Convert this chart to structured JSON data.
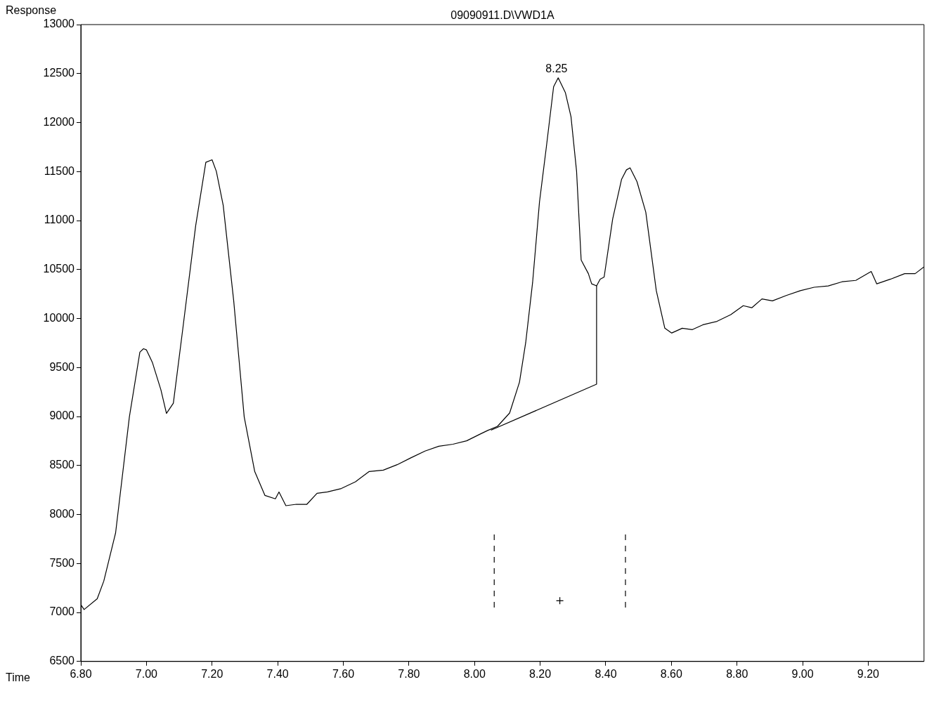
{
  "chart_data": {
    "type": "line",
    "title": "09090911.D\\VWD1A",
    "xlabel": "Time",
    "ylabel": "Response",
    "xlim": [
      6.8,
      9.37
    ],
    "ylim": [
      6500,
      13000
    ],
    "xticks": [
      {
        "value": 6.8,
        "label": "6.80"
      },
      {
        "value": 7.0,
        "label": "7.00"
      },
      {
        "value": 7.2,
        "label": "7.20"
      },
      {
        "value": 7.4,
        "label": "7.40"
      },
      {
        "value": 7.6,
        "label": "7.60"
      },
      {
        "value": 7.8,
        "label": "7.80"
      },
      {
        "value": 8.0,
        "label": "8.00"
      },
      {
        "value": 8.2,
        "label": "8.20"
      },
      {
        "value": 8.4,
        "label": "8.40"
      },
      {
        "value": 8.6,
        "label": "8.60"
      },
      {
        "value": 8.8,
        "label": "8.80"
      },
      {
        "value": 9.0,
        "label": "9.00"
      },
      {
        "value": 9.2,
        "label": "9.20"
      }
    ],
    "yticks": [
      6500,
      7000,
      7500,
      8000,
      8500,
      9000,
      9500,
      10000,
      10500,
      11000,
      11500,
      12000,
      12500,
      13000
    ],
    "grid": false,
    "legend": false,
    "marker": "none",
    "line_style": "solid",
    "annotations": [
      {
        "text": "8.25",
        "x": 8.25,
        "y": 12457
      }
    ],
    "series": [
      {
        "type": "line",
        "color": "#000000",
        "x": [
          6.8,
          6.81,
          6.85,
          6.87,
          6.906,
          6.948,
          6.98,
          6.991,
          7.0,
          7.018,
          7.044,
          7.061,
          7.082,
          7.111,
          7.15,
          7.181,
          7.2,
          7.213,
          7.234,
          7.266,
          7.298,
          7.33,
          7.361,
          7.393,
          7.404,
          7.425,
          7.457,
          7.489,
          7.52,
          7.552,
          7.594,
          7.637,
          7.679,
          7.722,
          7.764,
          7.806,
          7.849,
          7.891,
          7.934,
          7.976,
          8.018,
          8.039,
          8.07,
          8.107,
          8.137,
          8.156,
          8.177,
          8.198,
          8.219,
          8.241,
          8.255,
          8.277,
          8.294,
          8.311,
          8.325,
          8.347,
          8.357,
          8.372,
          8.383,
          8.395,
          8.421,
          8.448,
          8.463,
          8.474,
          8.495,
          8.522,
          8.554,
          8.58,
          8.601,
          8.633,
          8.664,
          8.696,
          8.739,
          8.781,
          8.819,
          8.845,
          8.876,
          8.908,
          8.95,
          8.993,
          9.035,
          9.078,
          9.12,
          9.162,
          9.209,
          9.226,
          9.268,
          9.311,
          9.343,
          9.37
        ],
        "values": [
          7080,
          7030,
          7140,
          7320,
          7812,
          8996,
          9657,
          9692,
          9680,
          9553,
          9274,
          9031,
          9135,
          9900,
          10945,
          11594,
          11620,
          11503,
          11155,
          10180,
          8996,
          8439,
          8195,
          8160,
          8230,
          8090,
          8104,
          8104,
          8216,
          8230,
          8265,
          8334,
          8439,
          8453,
          8508,
          8578,
          8647,
          8696,
          8717,
          8752,
          8822,
          8856,
          8900,
          9036,
          9351,
          9755,
          10368,
          11190,
          11753,
          12366,
          12457,
          12304,
          12060,
          11503,
          10597,
          10458,
          10354,
          10333,
          10402,
          10423,
          11015,
          11419,
          11517,
          11538,
          11398,
          11085,
          10284,
          9901,
          9852,
          9901,
          9887,
          9936,
          9971,
          10040,
          10131,
          10110,
          10200,
          10180,
          10235,
          10284,
          10319,
          10333,
          10375,
          10389,
          10480,
          10354,
          10402,
          10458,
          10458,
          10528
        ]
      },
      {
        "type": "line",
        "color": "#000000",
        "x": [
          8.05,
          8.372,
          8.372
        ],
        "values": [
          8860,
          9330,
          10333
        ]
      },
      {
        "type": "line",
        "color": "#000000",
        "line_style": "dashed",
        "x": [
          8.06,
          8.06
        ],
        "values": [
          7050,
          7800
        ]
      },
      {
        "type": "line",
        "color": "#000000",
        "line_style": "dashed",
        "x": [
          8.46,
          8.46
        ],
        "values": [
          7050,
          7800
        ]
      },
      {
        "type": "scatter",
        "color": "#000000",
        "marker": "cross",
        "x": [
          8.26
        ],
        "values": [
          7120
        ]
      }
    ]
  }
}
